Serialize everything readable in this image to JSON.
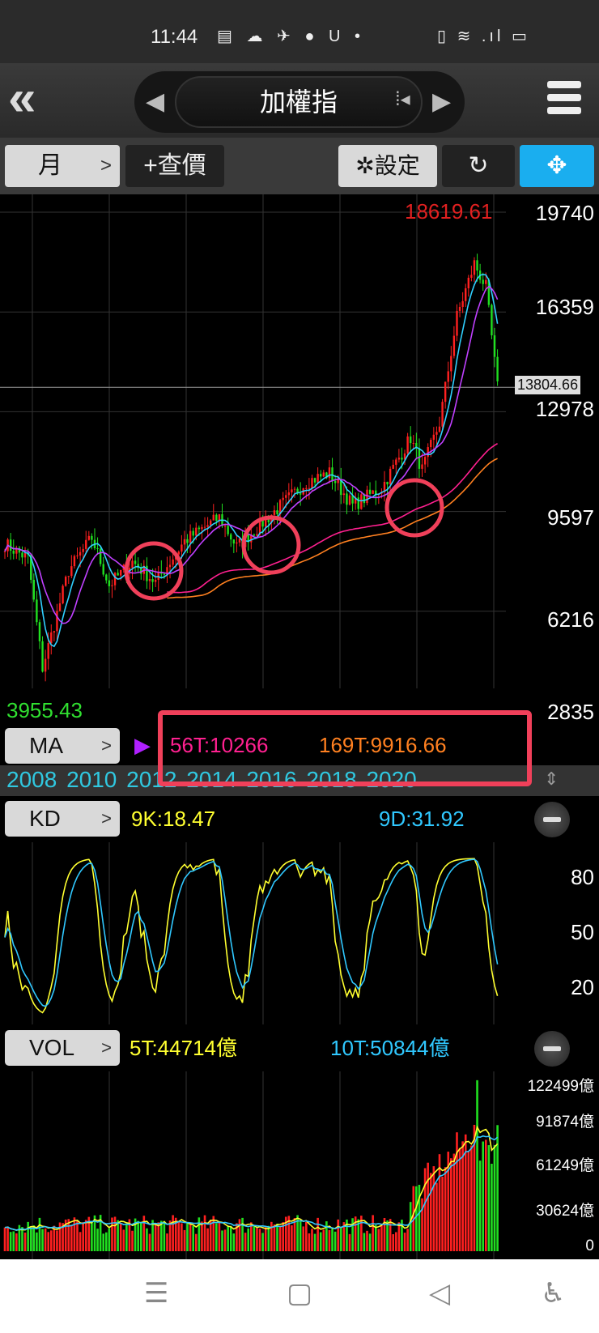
{
  "status_bar": {
    "time": "11:44",
    "notification_icons": "▤ ☁ ✈ ● U •",
    "system_icons": "▯ ≋ .ıl ▭"
  },
  "header": {
    "back_icon": "double-chevron-left",
    "title": "加權指",
    "prev_icon": "◀",
    "next_icon": "▶",
    "list_icon": "⁞◂",
    "menu_icon": "hamburger"
  },
  "toolbar": {
    "period": "月",
    "period_chev": ">",
    "quote": "+查價",
    "settings": "✲設定",
    "rotate_icon": "↻",
    "fullscreen_icon": "✥",
    "fullscreen_color": "#1aaeef"
  },
  "main_chart": {
    "high_label": "18619.61",
    "low_label": "3955.43",
    "current_price": "13804.66",
    "y_ticks": [
      "19740",
      "16359",
      "12978",
      "9597",
      "6216",
      "2835"
    ],
    "y_range": [
      2835,
      19740
    ],
    "up_color": "#ff2020",
    "down_color": "#20e020"
  },
  "ma": {
    "label": "MA",
    "chev": ">",
    "values": [
      {
        "text": "56T:10266",
        "color": "#ff2090"
      },
      {
        "text": "169T:9916.66",
        "color": "#ff8020"
      }
    ],
    "hidden_marker_color": "#b020ff"
  },
  "years": [
    "2008",
    "2010",
    "2012",
    "2014",
    "2016",
    "2018",
    "2020"
  ],
  "kd": {
    "label": "KD",
    "chev": ">",
    "k": "9K:18.47",
    "d": "9D:31.92",
    "k_color": "#ffff30",
    "d_color": "#30c8ff",
    "y_ticks": [
      "80",
      "50",
      "20"
    ]
  },
  "vol": {
    "label": "VOL",
    "chev": ">",
    "ma5": "5T:44714億",
    "ma10": "10T:50844億",
    "y_ticks": [
      "122499億",
      "91874億",
      "61249億",
      "30624億",
      "0"
    ]
  },
  "annotation_color": "#f0405a",
  "nav_bar": {
    "menu": "☰",
    "home": "▢",
    "back": "◁",
    "accessibility": "♿"
  }
}
